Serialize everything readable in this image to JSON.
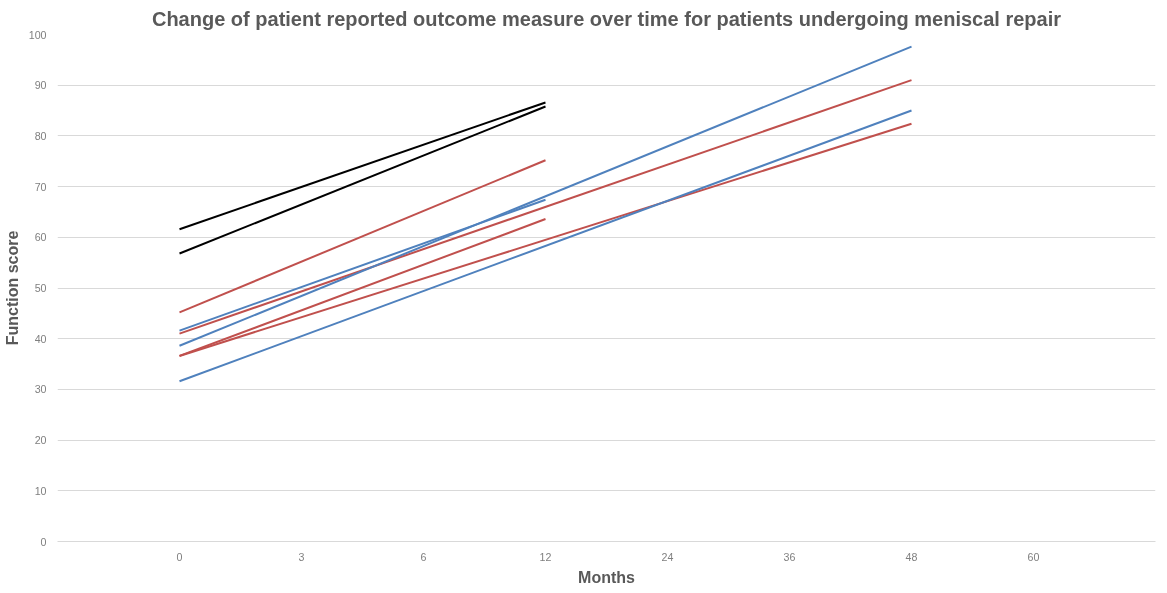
{
  "chart_data": {
    "type": "line",
    "title": "Change of patient reported outcome measure over time for patients undergoing meniscal repair",
    "xlabel": "Months",
    "ylabel": "Function score",
    "categories": [
      "0",
      "3",
      "6",
      "12",
      "24",
      "36",
      "48",
      "60"
    ],
    "ylim": [
      0,
      100
    ],
    "yticks": [
      0,
      10,
      20,
      30,
      40,
      50,
      60,
      70,
      80,
      90,
      100
    ],
    "grid": "y",
    "marker": "none",
    "line_style": "solid",
    "series": [
      {
        "color": "#000000",
        "values": [
          61.6,
          null,
          null,
          86.6,
          null,
          null,
          null,
          null
        ]
      },
      {
        "color": "#000000",
        "values": [
          56.8,
          null,
          null,
          85.8,
          null,
          null,
          null,
          null
        ]
      },
      {
        "color": "#c0504d",
        "values": [
          45.2,
          null,
          null,
          75.2,
          null,
          null,
          null,
          null
        ]
      },
      {
        "color": "#c0504d",
        "values": [
          41.0,
          null,
          null,
          null,
          null,
          null,
          91.0,
          null
        ]
      },
      {
        "color": "#c0504d",
        "values": [
          36.6,
          null,
          null,
          63.6,
          null,
          null,
          null,
          null
        ]
      },
      {
        "color": "#c0504d",
        "values": [
          36.6,
          null,
          null,
          null,
          null,
          null,
          82.4,
          null
        ]
      },
      {
        "color": "#4f81bd",
        "values": [
          41.6,
          null,
          null,
          67.4,
          null,
          null,
          null,
          null
        ]
      },
      {
        "color": "#4f81bd",
        "values": [
          38.6,
          null,
          null,
          null,
          null,
          null,
          97.6,
          null
        ]
      },
      {
        "color": "#4f81bd",
        "values": [
          31.6,
          null,
          null,
          null,
          null,
          null,
          85.0,
          null
        ]
      }
    ]
  }
}
